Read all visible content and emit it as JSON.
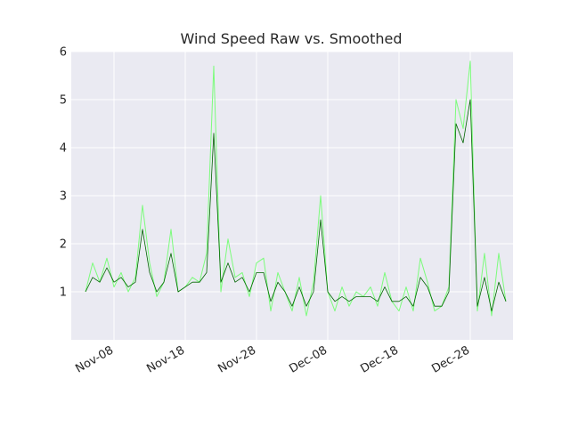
{
  "chart_data": {
    "type": "line",
    "title": "Wind Speed Raw vs. Smoothed",
    "xlabel": "",
    "ylabel": "",
    "x_axis": "date",
    "xlim": [
      "2023-11-02",
      "2024-01-03"
    ],
    "ylim": [
      0,
      6
    ],
    "xticks": [
      "Nov-08",
      "Nov-18",
      "Nov-28",
      "Dec-08",
      "Dec-18",
      "Dec-28"
    ],
    "yticks": [
      "1",
      "2",
      "3",
      "4",
      "5",
      "6"
    ],
    "grid": true,
    "legend": "none",
    "background": "#eaeaf2",
    "colors": {
      "raw": "#7cfc7c",
      "smoothed": "#006400"
    },
    "series": [
      {
        "key": "raw",
        "x": [
          "2023-11-04",
          "2023-11-05",
          "2023-11-06",
          "2023-11-07",
          "2023-11-08",
          "2023-11-09",
          "2023-11-10",
          "2023-11-11",
          "2023-11-12",
          "2023-11-13",
          "2023-11-14",
          "2023-11-15",
          "2023-11-16",
          "2023-11-17",
          "2023-11-18",
          "2023-11-19",
          "2023-11-20",
          "2023-11-21",
          "2023-11-22",
          "2023-11-23",
          "2023-11-24",
          "2023-11-25",
          "2023-11-26",
          "2023-11-27",
          "2023-11-28",
          "2023-11-29",
          "2023-11-30",
          "2023-12-01",
          "2023-12-02",
          "2023-12-03",
          "2023-12-04",
          "2023-12-05",
          "2023-12-06",
          "2023-12-07",
          "2023-12-08",
          "2023-12-09",
          "2023-12-10",
          "2023-12-11",
          "2023-12-12",
          "2023-12-13",
          "2023-12-14",
          "2023-12-15",
          "2023-12-16",
          "2023-12-17",
          "2023-12-18",
          "2023-12-19",
          "2023-12-20",
          "2023-12-21",
          "2023-12-22",
          "2023-12-23",
          "2023-12-24",
          "2023-12-25",
          "2023-12-26",
          "2023-12-27",
          "2023-12-28",
          "2023-12-29",
          "2023-12-30",
          "2023-12-31",
          "2024-01-01",
          "2024-01-02"
        ],
        "values": [
          1.0,
          1.6,
          1.2,
          1.7,
          1.1,
          1.4,
          1.0,
          1.3,
          2.8,
          1.6,
          0.9,
          1.2,
          2.3,
          1.0,
          1.1,
          1.3,
          1.2,
          1.8,
          5.7,
          1.0,
          2.1,
          1.3,
          1.4,
          0.9,
          1.6,
          1.7,
          0.6,
          1.4,
          1.0,
          0.6,
          1.3,
          0.5,
          1.2,
          3.0,
          1.0,
          0.6,
          1.1,
          0.7,
          1.0,
          0.9,
          1.1,
          0.7,
          1.4,
          0.8,
          0.6,
          1.1,
          0.6,
          1.7,
          1.2,
          0.6,
          0.7,
          1.1,
          5.0,
          4.4,
          5.8,
          0.6,
          1.8,
          0.5,
          1.8,
          0.8
        ]
      },
      {
        "key": "smoothed",
        "x": [
          "2023-11-04",
          "2023-11-05",
          "2023-11-06",
          "2023-11-07",
          "2023-11-08",
          "2023-11-09",
          "2023-11-10",
          "2023-11-11",
          "2023-11-12",
          "2023-11-13",
          "2023-11-14",
          "2023-11-15",
          "2023-11-16",
          "2023-11-17",
          "2023-11-18",
          "2023-11-19",
          "2023-11-20",
          "2023-11-21",
          "2023-11-22",
          "2023-11-23",
          "2023-11-24",
          "2023-11-25",
          "2023-11-26",
          "2023-11-27",
          "2023-11-28",
          "2023-11-29",
          "2023-11-30",
          "2023-12-01",
          "2023-12-02",
          "2023-12-03",
          "2023-12-04",
          "2023-12-05",
          "2023-12-06",
          "2023-12-07",
          "2023-12-08",
          "2023-12-09",
          "2023-12-10",
          "2023-12-11",
          "2023-12-12",
          "2023-12-13",
          "2023-12-14",
          "2023-12-15",
          "2023-12-16",
          "2023-12-17",
          "2023-12-18",
          "2023-12-19",
          "2023-12-20",
          "2023-12-21",
          "2023-12-22",
          "2023-12-23",
          "2023-12-24",
          "2023-12-25",
          "2023-12-26",
          "2023-12-27",
          "2023-12-28",
          "2023-12-29",
          "2023-12-30",
          "2023-12-31",
          "2024-01-01",
          "2024-01-02"
        ],
        "values": [
          1.0,
          1.3,
          1.2,
          1.5,
          1.2,
          1.3,
          1.1,
          1.2,
          2.3,
          1.4,
          1.0,
          1.2,
          1.8,
          1.0,
          1.1,
          1.2,
          1.2,
          1.4,
          4.3,
          1.2,
          1.6,
          1.2,
          1.3,
          1.0,
          1.4,
          1.4,
          0.8,
          1.2,
          1.0,
          0.7,
          1.1,
          0.7,
          1.0,
          2.5,
          1.0,
          0.8,
          0.9,
          0.8,
          0.9,
          0.9,
          0.9,
          0.8,
          1.1,
          0.8,
          0.8,
          0.9,
          0.7,
          1.3,
          1.1,
          0.7,
          0.7,
          1.0,
          4.5,
          4.1,
          5.0,
          0.7,
          1.3,
          0.6,
          1.2,
          0.8
        ]
      }
    ]
  }
}
